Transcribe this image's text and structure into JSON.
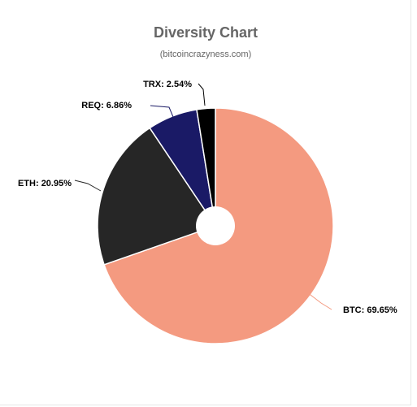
{
  "chart": {
    "title": "Diversity Chart",
    "subtitle": "(bitcoincrazyness.com)"
  },
  "chart_data": {
    "type": "pie",
    "title": "Diversity Chart",
    "subtitle": "(bitcoincrazyness.com)",
    "slices": [
      {
        "name": "BTC",
        "value": 69.65,
        "label": "BTC: 69.65%",
        "color": "#f49a80"
      },
      {
        "name": "ETH",
        "value": 20.95,
        "label": "ETH: 20.95%",
        "color": "#262626"
      },
      {
        "name": "REQ",
        "value": 6.86,
        "label": "REQ: 6.86%",
        "color": "#1a1a66"
      },
      {
        "name": "TRX",
        "value": 2.54,
        "label": "TRX: 2.54%",
        "color": "#000000"
      }
    ],
    "legend": "none",
    "donut_hole": true
  }
}
